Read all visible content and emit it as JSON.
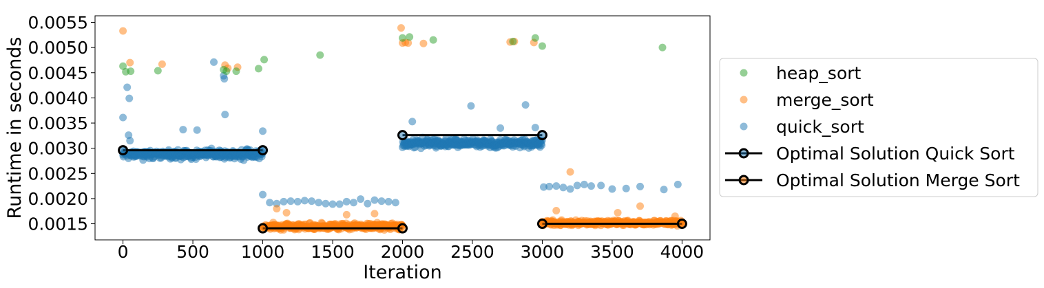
{
  "chart_data": {
    "type": "scatter",
    "title": "",
    "xlabel": "Iteration",
    "ylabel": "Runtime in seconds",
    "xlim": [
      -200,
      4200
    ],
    "ylim": [
      0.00118,
      0.00563
    ],
    "xticks": [
      0,
      500,
      1000,
      1500,
      2000,
      2500,
      3000,
      3500,
      4000
    ],
    "xtick_labels": [
      "0",
      "500",
      "1000",
      "1500",
      "2000",
      "2500",
      "3000",
      "3500",
      "4000"
    ],
    "yticks": [
      0.0015,
      0.002,
      0.0025,
      0.003,
      0.0035,
      0.004,
      0.0045,
      0.005,
      0.0055
    ],
    "ytick_labels": [
      "0.0015",
      "0.0020",
      "0.0025",
      "0.0030",
      "0.0035",
      "0.0040",
      "0.0045",
      "0.0050",
      "0.0055"
    ],
    "grid": false,
    "legend_position": "outside-right",
    "series": [
      {
        "name": "heap_sort",
        "kind": "scatter",
        "color": "#2ca02c",
        "points": [
          [
            0,
            0.00463
          ],
          [
            20,
            0.00452
          ],
          [
            55,
            0.00453
          ],
          [
            250,
            0.00454
          ],
          [
            720,
            0.00456
          ],
          [
            740,
            0.00453
          ],
          [
            810,
            0.00453
          ],
          [
            970,
            0.00458
          ],
          [
            1010,
            0.00476
          ],
          [
            1410,
            0.00485
          ],
          [
            2000,
            0.00519
          ],
          [
            2050,
            0.00521
          ],
          [
            2220,
            0.00515
          ],
          [
            2790,
            0.00512
          ],
          [
            2950,
            0.00519
          ],
          [
            3000,
            0.00503
          ],
          [
            3860,
            0.005
          ]
        ]
      },
      {
        "name": "merge_sort",
        "kind": "scatter",
        "color": "#ff7f0e",
        "points": [
          [
            0,
            0.00533
          ],
          [
            50,
            0.0047
          ],
          [
            280,
            0.00467
          ],
          [
            730,
            0.00465
          ],
          [
            750,
            0.00459
          ],
          [
            820,
            0.00461
          ],
          [
            1100,
            0.0018
          ],
          [
            1170,
            0.00172
          ],
          [
            1600,
            0.00168
          ],
          [
            1800,
            0.0017
          ],
          [
            1990,
            0.00539
          ],
          [
            2000,
            0.00509
          ],
          [
            2020,
            0.0051
          ],
          [
            2040,
            0.00509
          ],
          [
            2150,
            0.00508
          ],
          [
            2770,
            0.00511
          ],
          [
            2800,
            0.00512
          ],
          [
            2940,
            0.0051
          ],
          [
            3100,
            0.00176
          ],
          [
            3200,
            0.00253
          ],
          [
            3540,
            0.00172
          ],
          [
            3700,
            0.00185
          ],
          [
            3950,
            0.00165
          ]
        ]
      },
      {
        "name": "quick_sort",
        "kind": "scatter",
        "color": "#1f77b4",
        "points": [
          [
            0,
            0.00361
          ],
          [
            30,
            0.00421
          ],
          [
            45,
            0.00399
          ],
          [
            40,
            0.00326
          ],
          [
            50,
            0.00315
          ],
          [
            430,
            0.00337
          ],
          [
            530,
            0.00336
          ],
          [
            650,
            0.00471
          ],
          [
            720,
            0.00444
          ],
          [
            725,
            0.00438
          ],
          [
            730,
            0.00367
          ],
          [
            1000,
            0.00334
          ],
          [
            1000,
            0.00208
          ],
          [
            1050,
            0.00192
          ],
          [
            1100,
            0.0019
          ],
          [
            1150,
            0.00194
          ],
          [
            1200,
            0.00195
          ],
          [
            1250,
            0.00194
          ],
          [
            1300,
            0.00196
          ],
          [
            1350,
            0.00195
          ],
          [
            1400,
            0.00192
          ],
          [
            1450,
            0.0019
          ],
          [
            1500,
            0.00189
          ],
          [
            1550,
            0.00189
          ],
          [
            1600,
            0.00194
          ],
          [
            1650,
            0.00192
          ],
          [
            1700,
            0.00199
          ],
          [
            1750,
            0.0019
          ],
          [
            1800,
            0.00197
          ],
          [
            1850,
            0.00195
          ],
          [
            1900,
            0.00194
          ],
          [
            1950,
            0.00192
          ],
          [
            2070,
            0.00353
          ],
          [
            2490,
            0.00384
          ],
          [
            2700,
            0.0034
          ],
          [
            2880,
            0.00386
          ],
          [
            2950,
            0.00341
          ],
          [
            3010,
            0.00223
          ],
          [
            3050,
            0.00224
          ],
          [
            3100,
            0.00225
          ],
          [
            3150,
            0.00222
          ],
          [
            3200,
            0.00219
          ],
          [
            3250,
            0.00226
          ],
          [
            3300,
            0.00228
          ],
          [
            3350,
            0.00225
          ],
          [
            3420,
            0.00226
          ],
          [
            3500,
            0.00219
          ],
          [
            3600,
            0.0022
          ],
          [
            3700,
            0.00224
          ],
          [
            3870,
            0.00218
          ],
          [
            3970,
            0.00228
          ]
        ],
        "bands": [
          {
            "x_range": [
              0,
              1000
            ],
            "y_center": 0.00288,
            "y_spread": 0.00013
          },
          {
            "x_range": [
              2000,
              3000
            ],
            "y_center": 0.0031,
            "y_spread": 0.00012
          }
        ]
      },
      {
        "name": "Optimal Solution Quick Sort",
        "kind": "line",
        "color": "#000000",
        "marker_face": "#1f77b4",
        "segments": [
          [
            [
              0,
              0.00296
            ],
            [
              1000,
              0.00296
            ]
          ],
          [
            [
              2000,
              0.00326
            ],
            [
              3000,
              0.00326
            ]
          ]
        ]
      },
      {
        "name": "Optimal Solution Merge Sort",
        "kind": "line",
        "color": "#000000",
        "marker_face": "#ff7f0e",
        "segments": [
          [
            [
              1000,
              0.00141
            ],
            [
              2000,
              0.00141
            ]
          ],
          [
            [
              3000,
              0.0015
            ],
            [
              4000,
              0.0015
            ]
          ]
        ]
      }
    ],
    "merge_bands": [
      {
        "x_range": [
          1000,
          2000
        ],
        "y_center": 0.00145,
        "y_spread": 9e-05
      },
      {
        "x_range": [
          3000,
          4000
        ],
        "y_center": 0.00152,
        "y_spread": 7e-05
      }
    ]
  }
}
